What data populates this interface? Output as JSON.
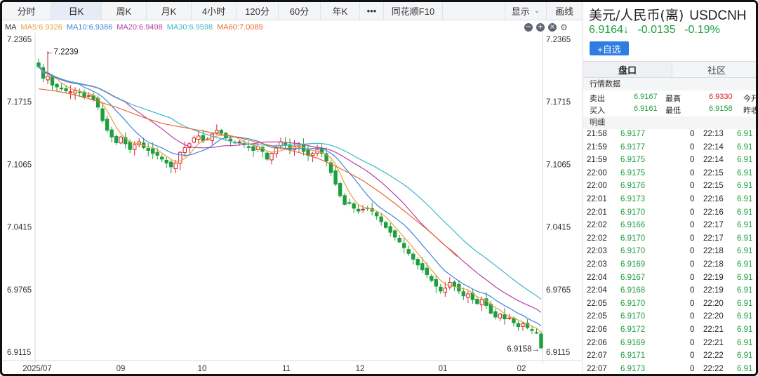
{
  "toolbar": {
    "periods": [
      "分时",
      "日K",
      "周K",
      "月K",
      "4小时",
      "120分",
      "60分",
      "年K"
    ],
    "active_period": "日K",
    "more": "•••",
    "f10": "同花顺F10",
    "display": "显示",
    "draw": "画线"
  },
  "ma": {
    "label": "MA",
    "items": [
      {
        "text": "MA5:6.9326",
        "color": "#e8a23c"
      },
      {
        "text": "MA10:6.9386",
        "color": "#3d86d9"
      },
      {
        "text": "MA20:6.9498",
        "color": "#b73fa8"
      },
      {
        "text": "MA30:6.9598",
        "color": "#3fb8c9"
      },
      {
        "text": "MA60:7.0089",
        "color": "#e86a2c"
      }
    ],
    "controls": [
      "−",
      "+",
      "×"
    ],
    "gear": "⚙"
  },
  "chart_data": {
    "type": "candlestick",
    "y_ticks": [
      "7.2365",
      "7.1715",
      "7.1065",
      "7.0415",
      "6.9765",
      "6.9115"
    ],
    "ylim": [
      6.9115,
      7.2365
    ],
    "x_ticks": [
      "2025/07",
      "09",
      "10",
      "11",
      "12",
      "01",
      "02"
    ],
    "annotations": {
      "high": "←7.2239",
      "low": "6.9158→"
    },
    "colors": {
      "up": "#d5232a",
      "down": "#1e9e3e",
      "ma5": "#e8a23c",
      "ma10": "#3d86d9",
      "ma20": "#b73fa8",
      "ma30": "#3fb8c9",
      "ma60": "#e86a2c"
    },
    "ma60_series": [
      7.185,
      7.183,
      7.18,
      7.176,
      7.171,
      7.166,
      7.16,
      7.154,
      7.149,
      7.146,
      7.143,
      7.14,
      7.137,
      7.134,
      7.13,
      7.126,
      7.122,
      7.118,
      7.113,
      7.106,
      7.098,
      7.089,
      7.078,
      7.066,
      7.053,
      7.04,
      7.026,
      7.011
    ],
    "closes": [
      7.208,
      7.196,
      7.198,
      7.189,
      7.187,
      7.185,
      7.183,
      7.182,
      7.183,
      7.181,
      7.176,
      7.178,
      7.174,
      7.166,
      7.152,
      7.142,
      7.135,
      7.129,
      7.135,
      7.128,
      7.122,
      7.127,
      7.13,
      7.124,
      7.121,
      7.118,
      7.116,
      7.112,
      7.108,
      7.104,
      7.108,
      7.119,
      7.124,
      7.128,
      7.134,
      7.136,
      7.131,
      7.133,
      7.138,
      7.142,
      7.139,
      7.134,
      7.131,
      7.129,
      7.13,
      7.127,
      7.124,
      7.121,
      7.125,
      7.12,
      7.112,
      7.118,
      7.124,
      7.13,
      7.127,
      7.122,
      7.125,
      7.126,
      7.12,
      7.116,
      7.118,
      7.122,
      7.118,
      7.11,
      7.098,
      7.086,
      7.074,
      7.065,
      7.066,
      7.061,
      7.058,
      7.06,
      7.061,
      7.058,
      7.053,
      7.047,
      7.041,
      7.036,
      7.031,
      7.026,
      7.02,
      7.014,
      7.008,
      7.002,
      6.997,
      6.992,
      6.986,
      6.98,
      6.975,
      6.978,
      6.984,
      6.98,
      6.975,
      6.97,
      6.972,
      6.966,
      6.962,
      6.966,
      6.96,
      6.952,
      6.948,
      6.951,
      6.946,
      6.947,
      6.942,
      6.938,
      6.941,
      6.937,
      6.934,
      6.932,
      6.9158
    ]
  },
  "panel": {
    "title": "美元/人民币(离)",
    "symbol": "USDCNH",
    "price": "6.9164↓",
    "change": "-0.0135",
    "change_pct": "-0.19%",
    "add_label": "+自选",
    "tab_active": "盘口",
    "tab_inactive": "社区",
    "quote_header": "行情数据",
    "sell_label": "卖出",
    "sell_value": "6.9167",
    "high_label": "最高",
    "high_value": "6.9330",
    "open_label": "今开",
    "buy_label": "买入",
    "buy_value": "6.9161",
    "low_label": "最低",
    "low_value": "6.9158",
    "prev_label": "昨收",
    "detail_header": "明细",
    "ticks": [
      {
        "t1": "21:58",
        "p1": "6.9177",
        "v1": "0",
        "t2": "22:13",
        "p2": "6.91"
      },
      {
        "t1": "21:59",
        "p1": "6.9177",
        "v1": "0",
        "t2": "22:14",
        "p2": "6.91"
      },
      {
        "t1": "21:59",
        "p1": "6.9175",
        "v1": "0",
        "t2": "22:14",
        "p2": "6.91"
      },
      {
        "t1": "22:00",
        "p1": "6.9175",
        "v1": "0",
        "t2": "22:15",
        "p2": "6.91"
      },
      {
        "t1": "22:00",
        "p1": "6.9176",
        "v1": "0",
        "t2": "22:15",
        "p2": "6.91"
      },
      {
        "t1": "22:01",
        "p1": "6.9173",
        "v1": "0",
        "t2": "22:16",
        "p2": "6.91"
      },
      {
        "t1": "22:01",
        "p1": "6.9170",
        "v1": "0",
        "t2": "22:16",
        "p2": "6.91"
      },
      {
        "t1": "22:02",
        "p1": "6.9166",
        "v1": "0",
        "t2": "22:17",
        "p2": "6.91"
      },
      {
        "t1": "22:02",
        "p1": "6.9170",
        "v1": "0",
        "t2": "22:17",
        "p2": "6.91"
      },
      {
        "t1": "22:03",
        "p1": "6.9170",
        "v1": "0",
        "t2": "22:18",
        "p2": "6.91"
      },
      {
        "t1": "22:03",
        "p1": "6.9169",
        "v1": "0",
        "t2": "22:18",
        "p2": "6.91"
      },
      {
        "t1": "22:04",
        "p1": "6.9167",
        "v1": "0",
        "t2": "22:19",
        "p2": "6.91"
      },
      {
        "t1": "22:04",
        "p1": "6.9168",
        "v1": "0",
        "t2": "22:19",
        "p2": "6.91"
      },
      {
        "t1": "22:05",
        "p1": "6.9170",
        "v1": "0",
        "t2": "22:20",
        "p2": "6.91"
      },
      {
        "t1": "22:05",
        "p1": "6.9170",
        "v1": "0",
        "t2": "22:20",
        "p2": "6.91"
      },
      {
        "t1": "22:06",
        "p1": "6.9172",
        "v1": "0",
        "t2": "22:21",
        "p2": "6.91"
      },
      {
        "t1": "22:06",
        "p1": "6.9169",
        "v1": "0",
        "t2": "22:21",
        "p2": "6.91"
      },
      {
        "t1": "22:07",
        "p1": "6.9171",
        "v1": "0",
        "t2": "22:22",
        "p2": "6.91"
      },
      {
        "t1": "22:07",
        "p1": "6.9173",
        "v1": "0",
        "t2": "22:22",
        "p2": "6.91"
      }
    ]
  }
}
